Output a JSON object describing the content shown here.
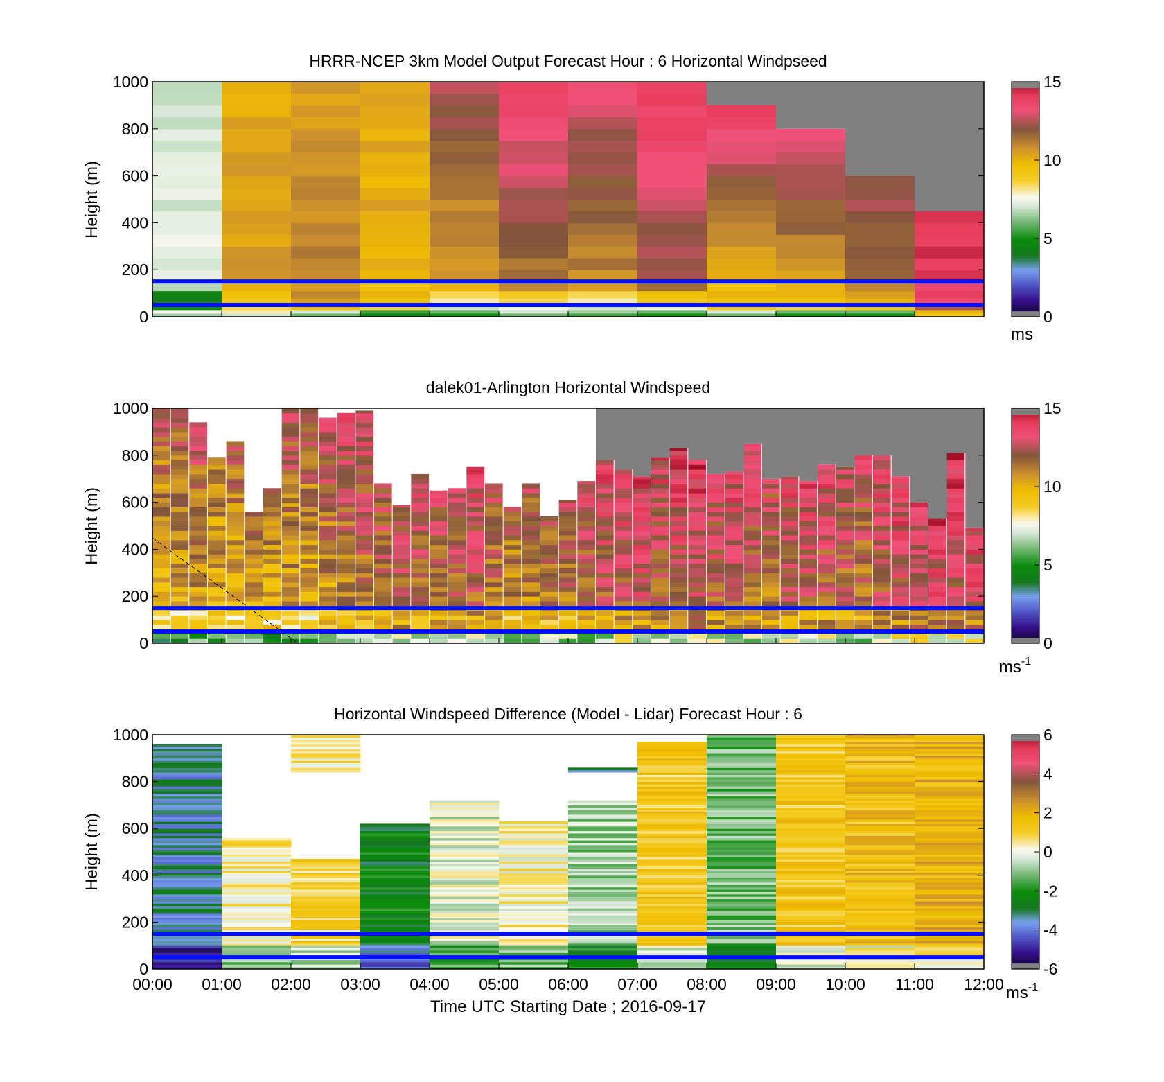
{
  "chart_data": [
    {
      "type": "heatmap",
      "title": "HRRR-NCEP 3km Model Output   Forecast Hour : 6 Horizontal Windpseed",
      "ylabel": "Height (m)",
      "ylim": [
        0,
        1000
      ],
      "yticks": [
        "0",
        "200",
        "400",
        "600",
        "800",
        "1000"
      ],
      "xlim": [
        0,
        12
      ],
      "colorbar": {
        "range": [
          0,
          15
        ],
        "ticks": [
          "0",
          "5",
          "10",
          "15"
        ],
        "unit": "ms"
      },
      "reference_lines_m": [
        150,
        50
      ],
      "columns": [
        {
          "start": 0,
          "top": 1000,
          "low": [
            6.5,
            5.0,
            4.0
          ],
          "mid": 7.2,
          "high": 7.0
        },
        {
          "start": 1,
          "top": 1000,
          "low": [
            7.0,
            8.5,
            9.0
          ],
          "mid": 10.5,
          "high": 10.2
        },
        {
          "start": 2,
          "top": 1000,
          "low": [
            6.0,
            9.5,
            10.5
          ],
          "mid": 11.0,
          "high": 10.5
        },
        {
          "start": 3,
          "top": 1000,
          "low": [
            4.5,
            8.5,
            9.5
          ],
          "mid": 10.0,
          "high": 10.5
        },
        {
          "start": 4,
          "top": 1000,
          "low": [
            5.0,
            7.0,
            8.0
          ],
          "mid": 10.5,
          "high": 12.5
        },
        {
          "start": 5,
          "top": 1000,
          "low": [
            6.0,
            7.5,
            8.5
          ],
          "mid": 11.5,
          "high": 13.8
        },
        {
          "start": 6,
          "top": 1000,
          "low": [
            5.5,
            7.0,
            8.0
          ],
          "mid": 11.0,
          "high": 13.2
        },
        {
          "start": 7,
          "top": 1000,
          "low": [
            5.0,
            7.5,
            9.0
          ],
          "mid": 12.0,
          "high": 14.2
        },
        {
          "start": 8,
          "top": 900,
          "low": [
            6.0,
            9.0,
            9.5
          ],
          "mid": 10.0,
          "high": 14.5
        },
        {
          "start": 9,
          "top": 800,
          "low": [
            5.0,
            8.5,
            9.5
          ],
          "mid": 10.5,
          "high": 14.8
        },
        {
          "start": 10,
          "top": 600,
          "low": [
            5.0,
            9.0,
            10.0
          ],
          "mid": 11.5,
          "high": 13.5
        },
        {
          "start": 11,
          "top": 450,
          "low": [
            9.0,
            12.5,
            13.5
          ],
          "mid": 14.0,
          "high": 14.8
        }
      ]
    },
    {
      "type": "heatmap",
      "title": "dalek01-Arlington  Horizontal Windspeed",
      "ylabel": "Height (m)",
      "ylim": [
        0,
        1000
      ],
      "yticks": [
        "0",
        "200",
        "400",
        "600",
        "800",
        "1000"
      ],
      "xlim": [
        0,
        12
      ],
      "colorbar": {
        "range": [
          0,
          15
        ],
        "ticks": [
          "0",
          "5",
          "10",
          "15"
        ],
        "unit": "ms",
        "unit_exponent": "-1"
      },
      "reference_lines_m": [
        150,
        50
      ],
      "tops_m": [
        1000,
        1000,
        940,
        790,
        860,
        560,
        660,
        1000,
        1000,
        960,
        980,
        990,
        680,
        590,
        720,
        650,
        660,
        750,
        680,
        580,
        680,
        540,
        610,
        690,
        780,
        740,
        710,
        790,
        830,
        780,
        720,
        730,
        850,
        700,
        710,
        690,
        760,
        750,
        800,
        800,
        710,
        600,
        530,
        810,
        490
      ],
      "mean_ms": [
        9.5,
        9.8,
        10.0,
        9.6,
        9.8,
        10.0,
        9.7,
        10.0,
        9.8,
        10.2,
        10.6,
        10.8,
        11.0,
        11.5,
        11.2,
        11.0,
        11.3,
        11.5,
        10.8,
        10.5,
        10.5,
        10.8,
        11.0,
        11.2,
        11.5,
        11.8,
        12.0,
        11.5,
        11.8,
        12.0,
        11.5,
        11.6,
        11.2,
        11.0,
        11.5,
        11.8,
        11.4,
        11.2,
        11.0,
        11.5,
        12.0,
        12.3,
        12.5,
        12.2,
        12.5
      ],
      "overlay": "dashed diagonal line from ~450 m at 00:00 to 0 m near 02:00"
    },
    {
      "type": "heatmap",
      "title": "Horizontal Windspeed Difference (Model - Lidar) Forecast Hour : 6",
      "ylabel": "Height (m)",
      "xlabel": "Time UTC  Starting Date ; 2016-09-17",
      "ylim": [
        0,
        1000
      ],
      "yticks": [
        "0",
        "200",
        "400",
        "600",
        "800",
        "1000"
      ],
      "xlim": [
        0,
        12
      ],
      "xticks": [
        "00:00",
        "01:00",
        "02:00",
        "03:00",
        "04:00",
        "05:00",
        "06:00",
        "07:00",
        "08:00",
        "09:00",
        "10:00",
        "11:00",
        "12:00"
      ],
      "colorbar": {
        "range": [
          -6,
          6
        ],
        "ticks": [
          "-6",
          "-4",
          "-2",
          "0",
          "2",
          "4",
          "6"
        ],
        "unit": "ms",
        "unit_exponent": "-1"
      },
      "reference_lines_m": [
        150,
        50
      ],
      "columns": [
        {
          "start": 0,
          "top": 960,
          "mean": -3.4
        },
        {
          "start": 1,
          "top": 560,
          "mean": 0.4
        },
        {
          "start": 2,
          "top": 470,
          "mean": 1.0
        },
        {
          "start": 3,
          "top": 620,
          "mean": -2.4
        },
        {
          "start": 4,
          "top": 720,
          "mean": -0.2
        },
        {
          "start": 5,
          "top": 630,
          "mean": 0.3
        },
        {
          "start": 6,
          "top": 720,
          "mean": -0.8
        },
        {
          "start": 7,
          "top": 970,
          "mean": 1.2
        },
        {
          "start": 8,
          "top": 1000,
          "mean": -1.2
        },
        {
          "start": 9,
          "top": 1000,
          "mean": 1.3
        },
        {
          "start": 10,
          "top": 1000,
          "mean": 1.6
        },
        {
          "start": 11,
          "top": 1000,
          "mean": 1.9
        }
      ],
      "upper_patches": [
        {
          "start": 2,
          "bottom": 840,
          "top": 1000,
          "mean": 0.6
        },
        {
          "start": 6,
          "bottom": 840,
          "top": 860,
          "mean": -3.0
        }
      ]
    }
  ]
}
